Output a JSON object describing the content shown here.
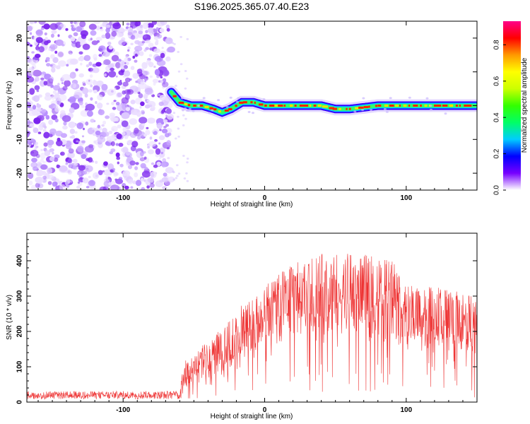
{
  "title": "S196.2025.365.07.40.E23",
  "chart_data": [
    {
      "type": "heatmap",
      "xlabel": "Height of straight line (km)",
      "ylabel": "Frequency (Hz)",
      "xlim": [
        -168,
        150
      ],
      "ylim": [
        -25,
        25
      ],
      "xticks": [
        -100,
        0,
        100
      ],
      "yticks": [
        -20,
        -10,
        0,
        10,
        20
      ],
      "noise_region_x": [
        -168,
        -66
      ],
      "ridge": {
        "x": [
          -66,
          -60,
          -52,
          -44,
          -36,
          -30,
          -24,
          -16,
          -8,
          0,
          10,
          20,
          40,
          50,
          60,
          80,
          100,
          120,
          140,
          150
        ],
        "y": [
          4,
          1,
          0,
          0,
          -1,
          -2,
          -1,
          1,
          1,
          0,
          0,
          0,
          0,
          -1,
          -1,
          0,
          0,
          0,
          0,
          0
        ]
      },
      "colorbar": {
        "label": "Normalized spectral amplitude",
        "range": [
          0,
          0.93
        ],
        "ticks": [
          "0.0",
          "0.2",
          "0.4",
          "0.6",
          "0.8"
        ],
        "tick_values": [
          0,
          0.2,
          0.4,
          0.6,
          0.8
        ],
        "colors": [
          "#ffffff",
          "#7700ff",
          "#0000ff",
          "#00ccff",
          "#00ff66",
          "#33ff00",
          "#ccff00",
          "#ffff00",
          "#ff9900",
          "#ff0000",
          "#ff0088"
        ]
      }
    },
    {
      "type": "line",
      "xlabel": "Height of straight line (km)",
      "ylabel": "SNR (10 * v/v)",
      "xlim": [
        -168,
        150
      ],
      "ylim": [
        0,
        478
      ],
      "xticks": [
        -100,
        0,
        100
      ],
      "yticks": [
        0,
        100,
        200,
        300,
        400
      ],
      "color": "#ee3333",
      "envelope": {
        "x": [
          -168,
          -60,
          -57,
          -50,
          -42,
          -34,
          -25,
          -15,
          -5,
          5,
          15,
          25,
          40,
          60,
          80,
          93,
          96,
          110,
          130,
          150
        ],
        "low": [
          8,
          8,
          30,
          40,
          55,
          65,
          80,
          100,
          120,
          150,
          170,
          180,
          190,
          180,
          175,
          175,
          150,
          145,
          140,
          135
        ],
        "high": [
          30,
          32,
          115,
          140,
          170,
          195,
          230,
          280,
          310,
          345,
          380,
          400,
          420,
          420,
          415,
          410,
          330,
          330,
          320,
          300
        ]
      }
    }
  ]
}
